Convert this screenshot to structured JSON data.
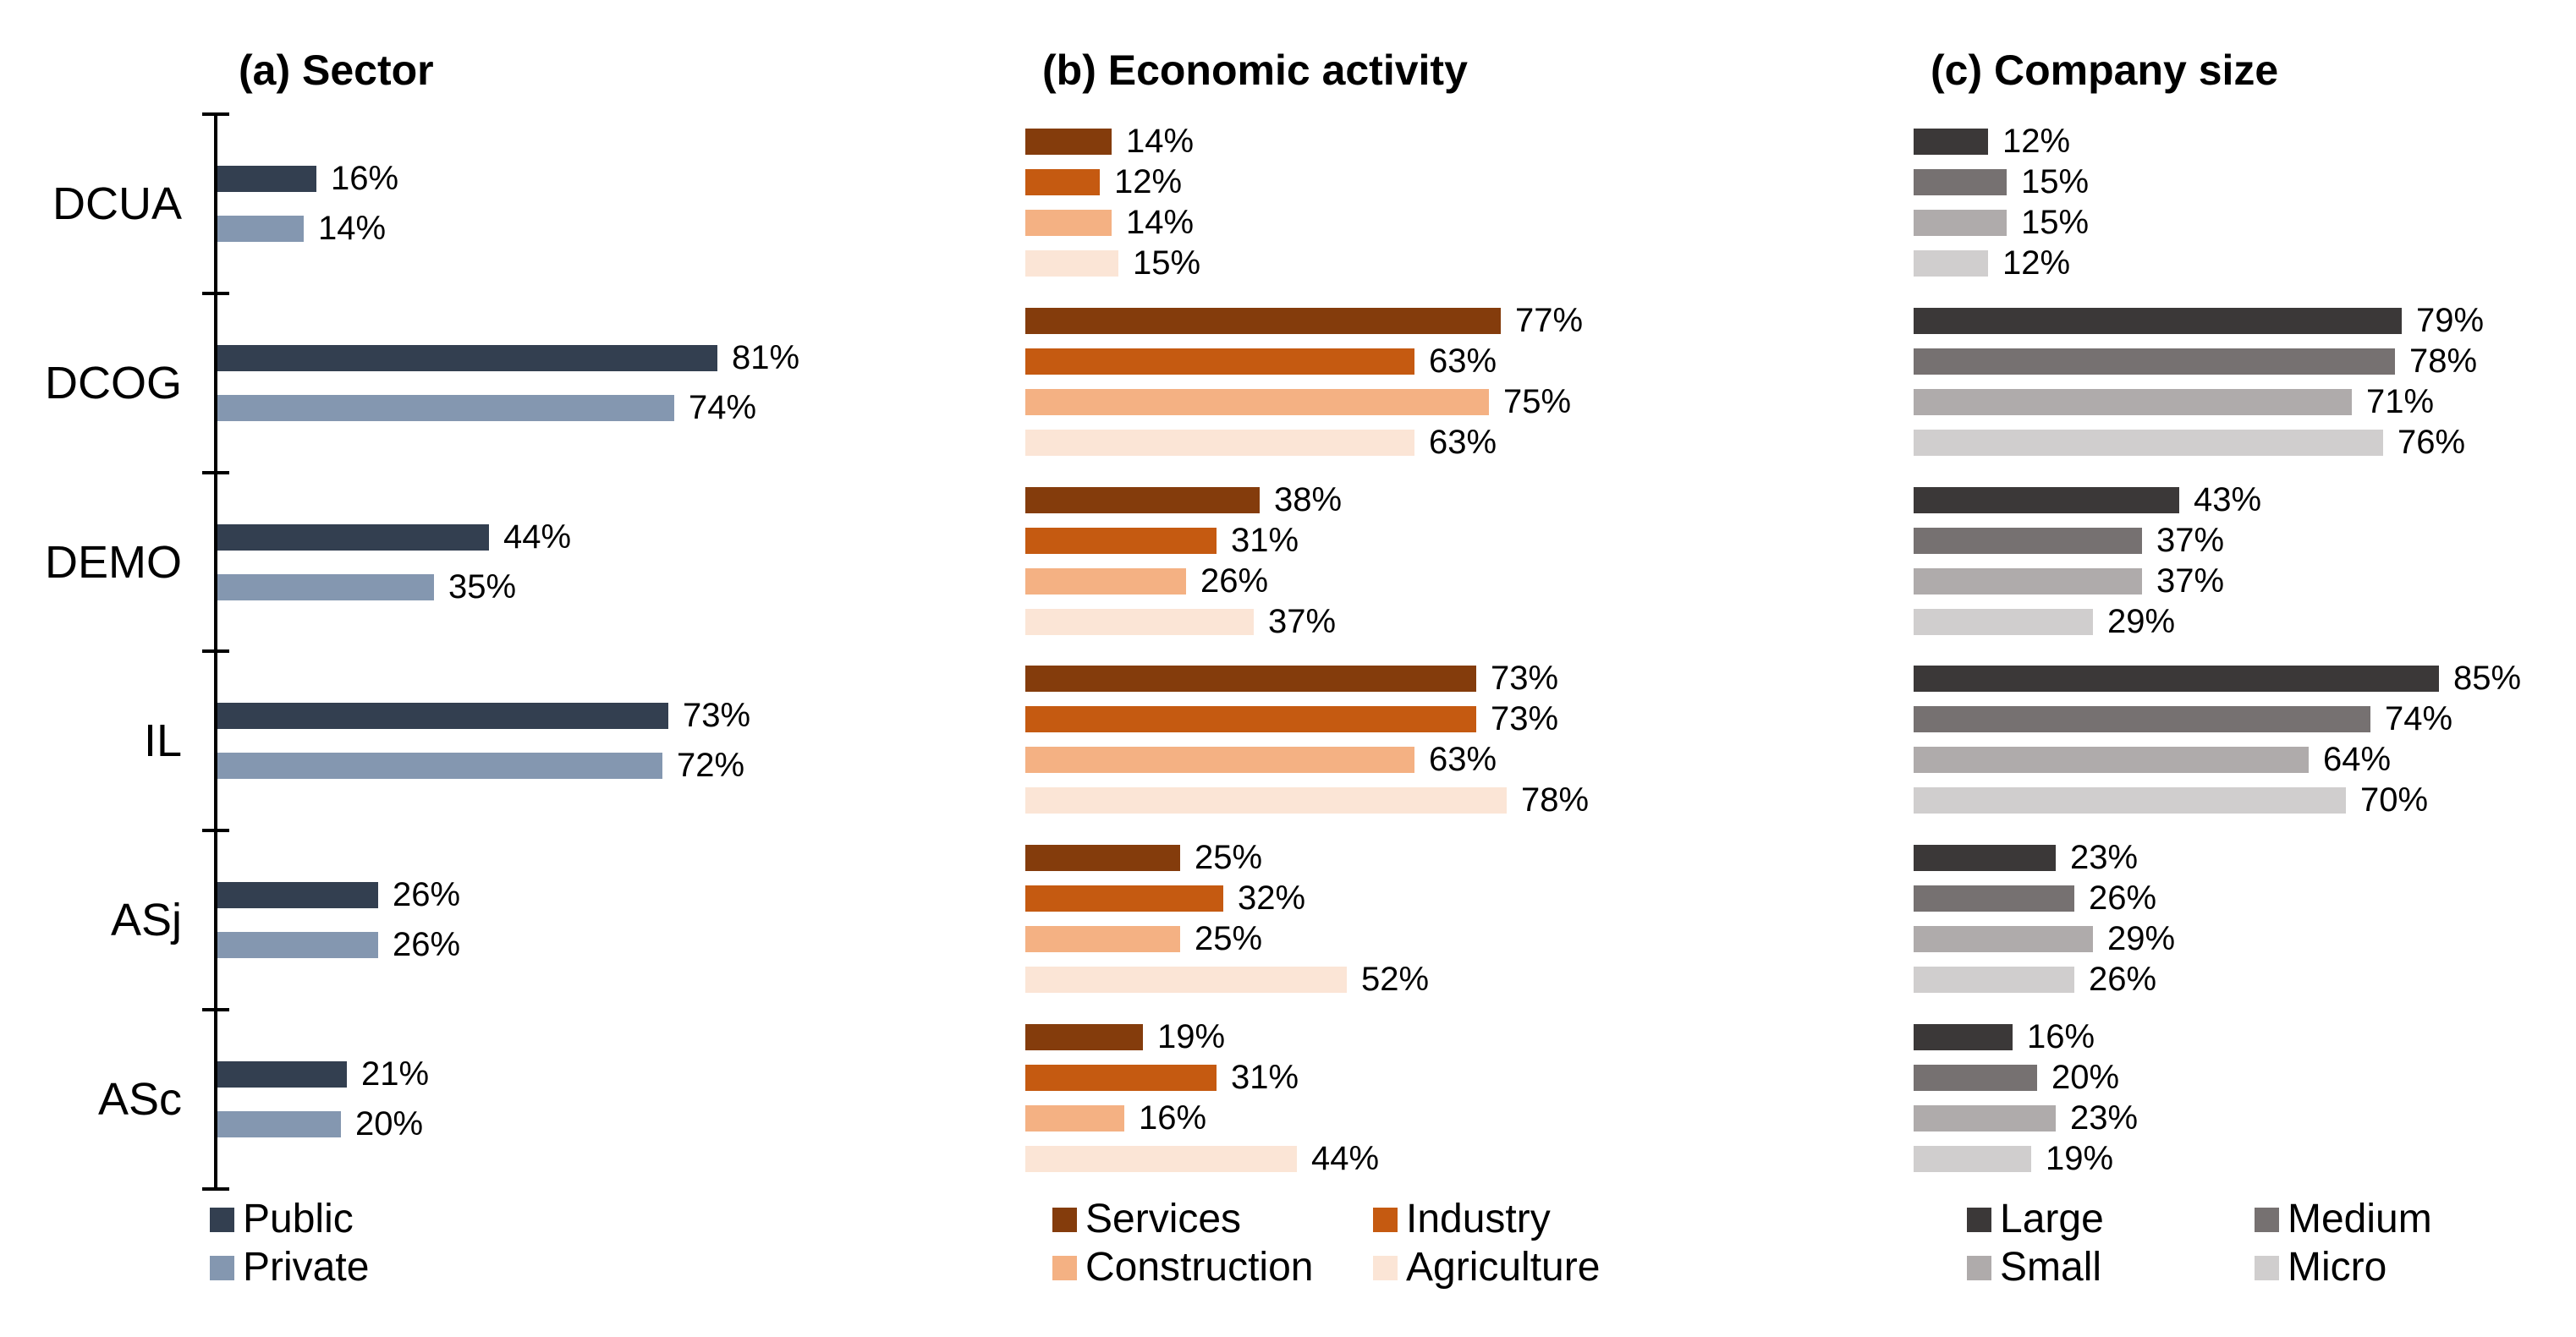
{
  "chart_data": [
    {
      "type": "bar",
      "orientation": "horizontal",
      "title": "(a) Sector",
      "categories": [
        "DCUA",
        "DCOG",
        "DEMO",
        "IL",
        "ASj",
        "ASc"
      ],
      "value_format": "percent",
      "xlim": [
        0,
        100
      ],
      "grid": false,
      "axis_line": true,
      "legend_position": "bottom-left",
      "legend_columns": 1,
      "series": [
        {
          "name": "Public",
          "color": "#333F50",
          "values": [
            16,
            81,
            44,
            73,
            26,
            21
          ],
          "labels": [
            "16%",
            "81%",
            "44%",
            "73%",
            "26%",
            "21%"
          ]
        },
        {
          "name": "Private",
          "color": "#8497B0",
          "values": [
            14,
            74,
            35,
            72,
            26,
            20
          ],
          "labels": [
            "14%",
            "74%",
            "35%",
            "72%",
            "26%",
            "20%"
          ]
        }
      ]
    },
    {
      "type": "bar",
      "orientation": "horizontal",
      "title": "(b) Economic activity",
      "categories": [
        "DCUA",
        "DCOG",
        "DEMO",
        "IL",
        "ASj",
        "ASc"
      ],
      "value_format": "percent",
      "xlim": [
        0,
        100
      ],
      "grid": false,
      "axis_line": false,
      "legend_position": "bottom-left",
      "legend_columns": 2,
      "series": [
        {
          "name": "Services",
          "color": "#843C0C",
          "values": [
            14,
            77,
            38,
            73,
            25,
            19
          ],
          "labels": [
            "14%",
            "77%",
            "38%",
            "73%",
            "25%",
            "19%"
          ]
        },
        {
          "name": "Industry",
          "color": "#C55A11",
          "values": [
            12,
            63,
            31,
            73,
            32,
            31
          ],
          "labels": [
            "12%",
            "63%",
            "31%",
            "73%",
            "32%",
            "31%"
          ]
        },
        {
          "name": "Construction",
          "color": "#F4B183",
          "values": [
            14,
            75,
            26,
            63,
            25,
            16
          ],
          "labels": [
            "14%",
            "75%",
            "26%",
            "63%",
            "25%",
            "16%"
          ]
        },
        {
          "name": "Agriculture",
          "color": "#FBE5D6",
          "values": [
            15,
            63,
            37,
            78,
            52,
            44
          ],
          "labels": [
            "15%",
            "63%",
            "37%",
            "78%",
            "52%",
            "44%"
          ]
        }
      ]
    },
    {
      "type": "bar",
      "orientation": "horizontal",
      "title": "(c) Company size",
      "categories": [
        "DCUA",
        "DCOG",
        "DEMO",
        "IL",
        "ASj",
        "ASc"
      ],
      "value_format": "percent",
      "xlim": [
        0,
        100
      ],
      "grid": false,
      "axis_line": false,
      "legend_position": "bottom-left",
      "legend_columns": 2,
      "series": [
        {
          "name": "Large",
          "color": "#3B3838",
          "values": [
            12,
            79,
            43,
            85,
            23,
            16
          ],
          "labels": [
            "12%",
            "79%",
            "43%",
            "85%",
            "23%",
            "16%"
          ]
        },
        {
          "name": "Medium",
          "color": "#767171",
          "values": [
            15,
            78,
            37,
            74,
            26,
            20
          ],
          "labels": [
            "15%",
            "78%",
            "37%",
            "74%",
            "26%",
            "20%"
          ]
        },
        {
          "name": "Small",
          "color": "#AFABAB",
          "values": [
            15,
            71,
            37,
            64,
            29,
            23
          ],
          "labels": [
            "15%",
            "71%",
            "37%",
            "64%",
            "29%",
            "23%"
          ]
        },
        {
          "name": "Micro",
          "color": "#D0CECE",
          "values": [
            12,
            76,
            29,
            70,
            26,
            19
          ],
          "labels": [
            "12%",
            "76%",
            "29%",
            "70%",
            "26%",
            "19%"
          ]
        }
      ]
    }
  ]
}
